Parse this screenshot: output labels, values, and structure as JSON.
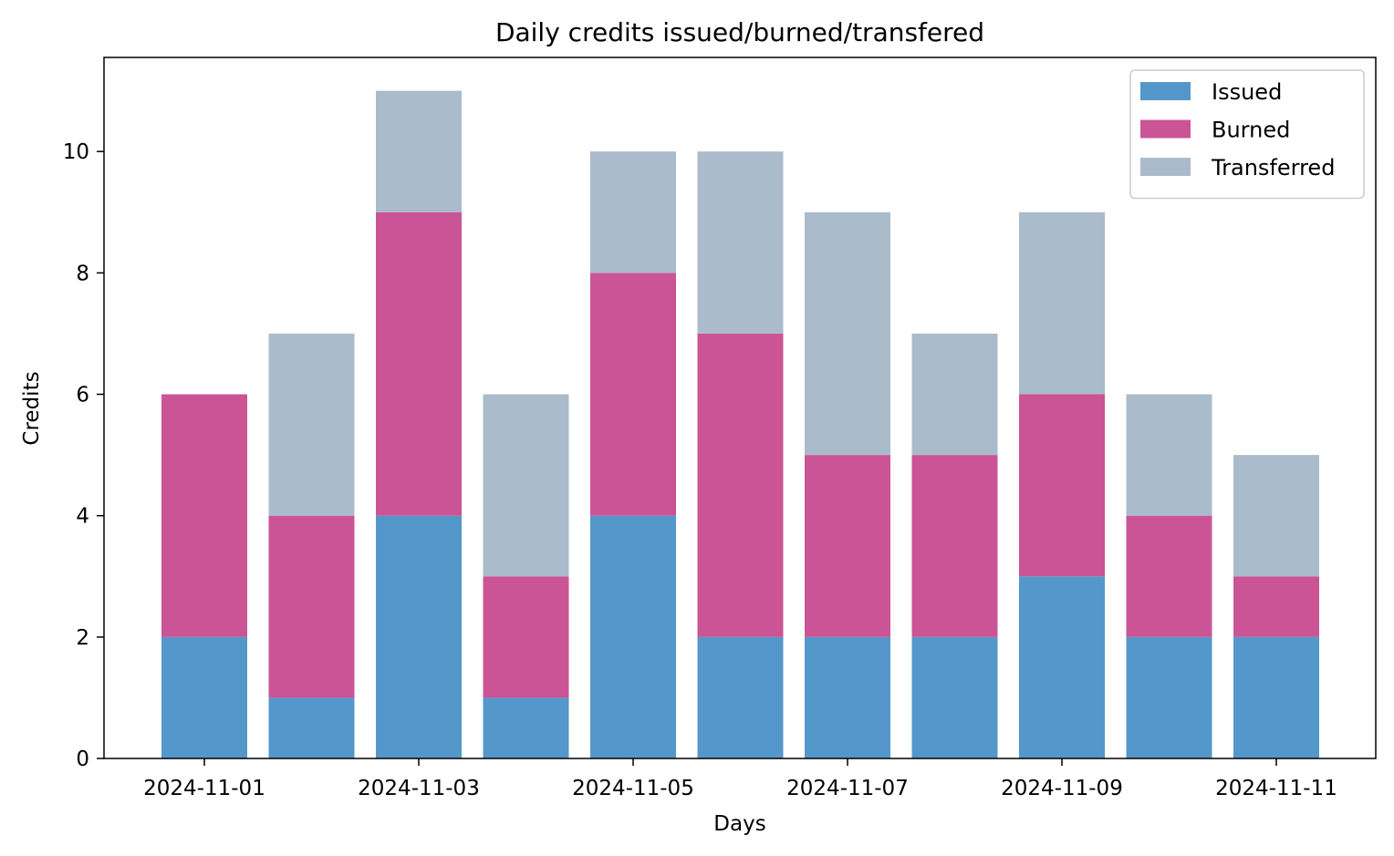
{
  "chart_data": {
    "type": "bar",
    "stacked": true,
    "title": "Daily credits issued/burned/transfered",
    "xlabel": "Days",
    "ylabel": "Credits",
    "categories": [
      "2024-11-01",
      "2024-11-02",
      "2024-11-03",
      "2024-11-04",
      "2024-11-05",
      "2024-11-06",
      "2024-11-07",
      "2024-11-08",
      "2024-11-09",
      "2024-11-10",
      "2024-11-11"
    ],
    "x_tick_labels": [
      "2024-11-01",
      "2024-11-03",
      "2024-11-05",
      "2024-11-07",
      "2024-11-09",
      "2024-11-11"
    ],
    "y_ticks": [
      0,
      2,
      4,
      6,
      8,
      10
    ],
    "ylim": [
      0,
      11.55
    ],
    "legend_position": "top-right",
    "grid": false,
    "series": [
      {
        "name": "Issued",
        "color": "#5497ca",
        "values": [
          2,
          1,
          4,
          1,
          4,
          2,
          2,
          2,
          3,
          2,
          2
        ]
      },
      {
        "name": "Burned",
        "color": "#cb5496",
        "values": [
          4,
          3,
          5,
          2,
          4,
          5,
          3,
          3,
          3,
          2,
          1
        ]
      },
      {
        "name": "Transferred",
        "color": "#aabbcb",
        "values": [
          0,
          3,
          2,
          3,
          2,
          3,
          4,
          2,
          3,
          2,
          2
        ]
      }
    ]
  }
}
